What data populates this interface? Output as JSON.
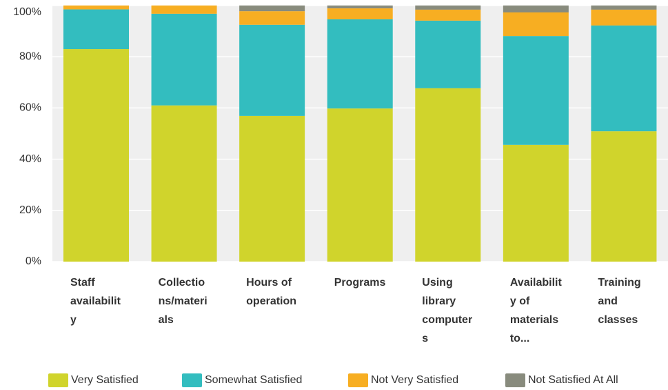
{
  "chart_data": {
    "type": "stacked_bar",
    "categories": [
      "Staff availability",
      "Collections/materials",
      "Hours of operation",
      "Programs",
      "Using library computers",
      "Availability of materials to...",
      "Training and classes"
    ],
    "series": [
      {
        "name": "Very Satisfied",
        "color": "#d0d42c",
        "values": [
          83,
          61,
          56.9,
          59.8,
          67.7,
          45.6,
          50.9
        ]
      },
      {
        "name": "Somewhat Satisfied",
        "color": "#33bdbf",
        "values": [
          15.5,
          35.8,
          35.6,
          34.8,
          26.4,
          42.5,
          41.3
        ]
      },
      {
        "name": "Not Very Satisfied",
        "color": "#f7ae22",
        "values": [
          1.5,
          3.2,
          5.3,
          4.3,
          4.3,
          9.2,
          6.2
        ]
      },
      {
        "name": "Not Satisfied At All",
        "color": "#888b7d",
        "values": [
          0,
          0,
          2.2,
          1.1,
          1.6,
          2.7,
          1.6
        ]
      }
    ],
    "ylim": [
      0,
      100
    ],
    "yticks": [
      {
        "value": 0,
        "label": "0%"
      },
      {
        "value": 20,
        "label": "20%"
      },
      {
        "value": 40,
        "label": "40%"
      },
      {
        "value": 60,
        "label": "60%"
      },
      {
        "value": 80,
        "label": "80%"
      },
      {
        "value": 100,
        "label": "100%"
      }
    ],
    "grid": true
  }
}
